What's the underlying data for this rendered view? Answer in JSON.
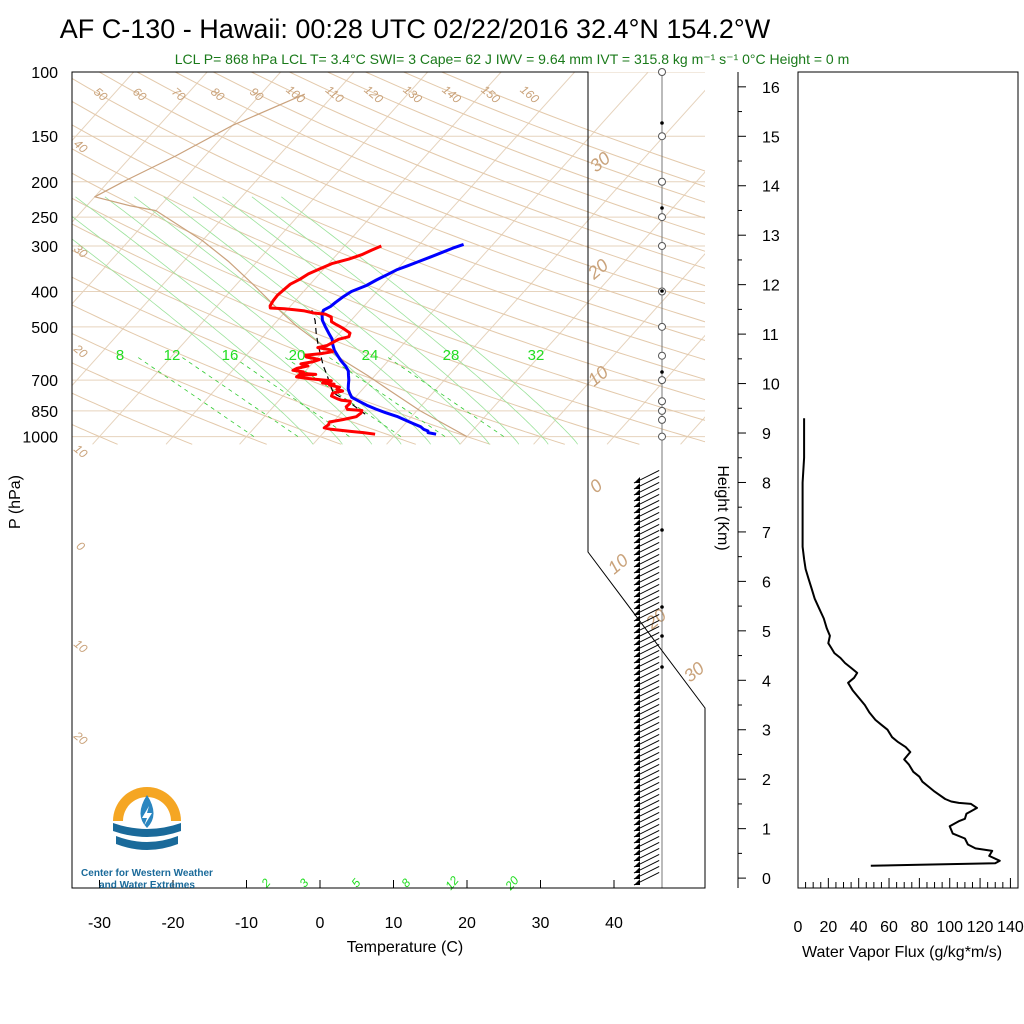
{
  "title": "AF C-130 - Hawaii: 00:28 UTC 02/22/2016  32.4°N 154.2°W",
  "subtitle": "LCL P= 868 hPa  LCL T= 3.4°C  SWI= 3  Cape= 62 J  IWV = 9.64 mm  IVT = 315.8 kg m⁻¹ s⁻¹  0°C Height = 0 m",
  "logo": {
    "line1": "Center for Western Weather",
    "line2": "and Water Extremes"
  },
  "colors": {
    "temperature": "#ff0000",
    "dewpoint": "#0000ff",
    "isotherm": "#d9bf9f",
    "mixing_ratio": "#22dd22",
    "parcel": "#000000",
    "logo_orange": "#f5a623",
    "logo_blue": "#1a6a9a"
  },
  "chart_data": [
    {
      "type": "line",
      "name": "skew-t",
      "xlabel": "Temperature (C)",
      "ylabel": "P (hPa)",
      "x_ticks": [
        "-30",
        "-20",
        "-10",
        "0",
        "10",
        "20",
        "30",
        "40"
      ],
      "x_tick_values": [
        -30,
        -20,
        -10,
        0,
        10,
        20,
        30,
        40
      ],
      "y_ticks": [
        "100",
        "150",
        "200",
        "250",
        "300",
        "400",
        "500",
        "700",
        "850",
        "1000"
      ],
      "y_tick_values": [
        100,
        150,
        200,
        250,
        300,
        400,
        500,
        700,
        850,
        1000
      ],
      "xlim": [
        -34,
        51
      ],
      "ylim": [
        1050,
        100
      ],
      "y_scale": "log",
      "isotherm_labels_top": [
        "50",
        "60",
        "70",
        "80",
        "90",
        "100",
        "110",
        "120",
        "130",
        "140",
        "150",
        "160"
      ],
      "isotherm_labels_left": [
        "40",
        "30",
        "20",
        "10",
        "0",
        "10",
        "20"
      ],
      "isotherm_labels_right": [
        "30",
        "20",
        "10",
        "0",
        "10",
        "20",
        "30"
      ],
      "mixing_ratio_labels_top": [
        "8",
        "12",
        "16",
        "20",
        "24",
        "28",
        "32"
      ],
      "mixing_ratio_labels_bottom": [
        "2",
        "3",
        "5",
        "8",
        "12",
        "20"
      ],
      "series": [
        {
          "name": "Temperature",
          "points": [
            [
              7.2,
              985
            ],
            [
              5.4,
              975
            ],
            [
              3.7,
              968
            ],
            [
              2.5,
              963
            ],
            [
              0.6,
              955
            ],
            [
              -0.5,
              946
            ],
            [
              -0.3,
              928
            ],
            [
              -0.5,
              912
            ],
            [
              1.0,
              898
            ],
            [
              2.5,
              882
            ],
            [
              2.7,
              862
            ],
            [
              2.5,
              848
            ],
            [
              0.4,
              842
            ],
            [
              -0.1,
              828
            ],
            [
              0.0,
              812
            ],
            [
              -0.2,
              800
            ],
            [
              -1.5,
              795
            ],
            [
              -2.3,
              787
            ],
            [
              -3.4,
              774
            ],
            [
              -3.6,
              760
            ],
            [
              -2.5,
              750
            ],
            [
              -3.5,
              742
            ],
            [
              -3.4,
              732
            ],
            [
              -5.0,
              723
            ],
            [
              -4.5,
              718
            ],
            [
              -6.2,
              713
            ],
            [
              -5.3,
              703
            ],
            [
              -7.5,
              697
            ],
            [
              -9.0,
              692
            ],
            [
              -10.5,
              686
            ],
            [
              -10.4,
              680
            ],
            [
              -8.2,
              675
            ],
            [
              -10.5,
              670
            ],
            [
              -10.2,
              664
            ],
            [
              -11.8,
              658
            ],
            [
              -11.5,
              650
            ],
            [
              -10.3,
              640
            ],
            [
              -11.5,
              632
            ],
            [
              -10.2,
              624
            ],
            [
              -9.5,
              615
            ],
            [
              -11.6,
              605
            ],
            [
              -12.0,
              598
            ],
            [
              -10.0,
              592
            ],
            [
              -8.7,
              585
            ],
            [
              -9.2,
              578
            ],
            [
              -11.2,
              570
            ],
            [
              -10.2,
              562
            ],
            [
              -9.8,
              552
            ],
            [
              -9.4,
              541
            ],
            [
              -8.3,
              532
            ],
            [
              -8.6,
              520
            ],
            [
              -9.5,
              511
            ],
            [
              -10.3,
              503
            ],
            [
              -11.5,
              493
            ],
            [
              -12.5,
              484
            ],
            [
              -13.1,
              470
            ],
            [
              -14.2,
              462
            ],
            [
              -16.0,
              458
            ],
            [
              -17.5,
              452
            ],
            [
              -19.0,
              449
            ],
            [
              -20.5,
              446
            ],
            [
              -22.5,
              444
            ],
            [
              -22.8,
              438
            ],
            [
              -23.0,
              425
            ],
            [
              -23.1,
              410
            ],
            [
              -22.9,
              395
            ],
            [
              -22.7,
              382
            ],
            [
              -22.0,
              370
            ],
            [
              -21.5,
              358
            ],
            [
              -20.5,
              346
            ],
            [
              -19.5,
              335
            ],
            [
              -17.8,
              326
            ],
            [
              -16.6,
              317
            ],
            [
              -15.8,
              308
            ],
            [
              -15.0,
              300
            ]
          ]
        },
        {
          "name": "Dewpoint",
          "points": [
            [
              15.5,
              985
            ],
            [
              14.2,
              975
            ],
            [
              14.0,
              965
            ],
            [
              13.2,
              955
            ],
            [
              12.5,
              940
            ],
            [
              11.0,
              920
            ],
            [
              9.5,
              900
            ],
            [
              8.0,
              880
            ],
            [
              6.0,
              860
            ],
            [
              4.2,
              840
            ],
            [
              2.5,
              820
            ],
            [
              1.0,
              800
            ],
            [
              -0.5,
              780
            ],
            [
              -1.3,
              760
            ],
            [
              -2.0,
              740
            ],
            [
              -2.5,
              720
            ],
            [
              -3.0,
              700
            ],
            [
              -3.6,
              680
            ],
            [
              -4.2,
              660
            ],
            [
              -5.2,
              640
            ],
            [
              -6.4,
              620
            ],
            [
              -7.5,
              600
            ],
            [
              -8.6,
              580
            ],
            [
              -9.5,
              560
            ],
            [
              -10.3,
              540
            ],
            [
              -11.5,
              520
            ],
            [
              -12.7,
              500
            ],
            [
              -13.9,
              480
            ],
            [
              -14.7,
              462
            ],
            [
              -15.0,
              450
            ],
            [
              -14.5,
              440
            ],
            [
              -14.3,
              428
            ],
            [
              -14.0,
              415
            ],
            [
              -13.5,
              400
            ],
            [
              -12.2,
              385
            ],
            [
              -11.5,
              372
            ],
            [
              -10.7,
              360
            ],
            [
              -10.0,
              349
            ],
            [
              -9.0,
              340
            ],
            [
              -8.0,
              331
            ],
            [
              -7.0,
              322
            ],
            [
              -6.0,
              313
            ],
            [
              -5.0,
              304
            ],
            [
              -4.0,
              297
            ]
          ]
        },
        {
          "name": "Parcel",
          "points": [
            [
              3.4,
              868
            ],
            [
              -0.5,
              800
            ],
            [
              -3.5,
              760
            ],
            [
              -5.0,
              720
            ],
            [
              -6.5,
              680
            ],
            [
              -8.2,
              640
            ],
            [
              -9.8,
              600
            ],
            [
              -11.5,
              560
            ],
            [
              -13.2,
              520
            ],
            [
              -14.9,
              480
            ],
            [
              -16.6,
              450
            ]
          ]
        },
        {
          "name": "Reference",
          "points": [
            [
              20.0,
              1000
            ],
            [
              10.5,
              850
            ],
            [
              4.0,
              750
            ],
            [
              -1.0,
              680
            ],
            [
              -6.0,
              620
            ],
            [
              -11.0,
              560
            ],
            [
              -16.5,
              500
            ],
            [
              -22.0,
              440
            ],
            [
              -28.0,
              380
            ],
            [
              -34.0,
              330
            ],
            [
              -40.0,
              290
            ],
            [
              -50.0,
              240
            ],
            [
              -54.0,
              233
            ],
            [
              -60.0,
              220
            ],
            [
              -58.0,
              200
            ],
            [
              -54.0,
              170
            ],
            [
              -50.0,
              140
            ],
            [
              -44.0,
              115
            ]
          ]
        }
      ]
    },
    {
      "type": "line",
      "name": "water-vapor-flux",
      "xlabel": "Water Vapor Flux (g/kg*m/s)",
      "ylabel": "Height (Km)",
      "x_ticks": [
        "0",
        "20",
        "40",
        "60",
        "80",
        "100",
        "120",
        "140"
      ],
      "x_tick_values": [
        0,
        20,
        40,
        60,
        80,
        100,
        120,
        140
      ],
      "y_ticks": [
        "0",
        "1",
        "2",
        "3",
        "4",
        "5",
        "6",
        "7",
        "8",
        "9",
        "10",
        "11",
        "12",
        "13",
        "14",
        "15",
        "16"
      ],
      "y_tick_values": [
        0,
        1,
        2,
        3,
        4,
        5,
        6,
        7,
        8,
        9,
        10,
        11,
        12,
        13,
        14,
        15,
        16
      ],
      "xlim": [
        0,
        145
      ],
      "ylim": [
        -0.2,
        16.3
      ],
      "series": [
        {
          "name": "Water Vapor Flux",
          "points": [
            [
              48,
              0.25
            ],
            [
              80,
              0.27
            ],
            [
              130,
              0.3
            ],
            [
              133,
              0.35
            ],
            [
              126,
              0.45
            ],
            [
              128,
              0.55
            ],
            [
              117,
              0.6
            ],
            [
              112,
              0.68
            ],
            [
              110,
              0.8
            ],
            [
              102,
              0.9
            ],
            [
              100,
              1.05
            ],
            [
              106,
              1.15
            ],
            [
              110,
              1.2
            ],
            [
              111,
              1.3
            ],
            [
              114,
              1.35
            ],
            [
              118,
              1.42
            ],
            [
              114,
              1.5
            ],
            [
              106,
              1.52
            ],
            [
              101,
              1.55
            ],
            [
              97,
              1.6
            ],
            [
              90,
              1.75
            ],
            [
              86,
              1.85
            ],
            [
              82,
              1.95
            ],
            [
              80,
              2.05
            ],
            [
              76,
              2.15
            ],
            [
              73,
              2.3
            ],
            [
              70,
              2.4
            ],
            [
              74,
              2.55
            ],
            [
              71,
              2.65
            ],
            [
              66,
              2.75
            ],
            [
              62,
              2.85
            ],
            [
              59,
              3.0
            ],
            [
              55,
              3.1
            ],
            [
              51,
              3.2
            ],
            [
              47,
              3.35
            ],
            [
              44,
              3.5
            ],
            [
              40,
              3.65
            ],
            [
              36,
              3.8
            ],
            [
              33,
              3.95
            ],
            [
              37,
              4.05
            ],
            [
              39,
              4.15
            ],
            [
              35,
              4.25
            ],
            [
              31,
              4.35
            ],
            [
              28,
              4.45
            ],
            [
              24,
              4.55
            ],
            [
              22,
              4.65
            ],
            [
              20,
              4.75
            ],
            [
              21,
              4.9
            ],
            [
              19,
              5.05
            ],
            [
              17,
              5.25
            ],
            [
              14,
              5.45
            ],
            [
              11,
              5.65
            ],
            [
              9,
              5.85
            ],
            [
              7,
              6.05
            ],
            [
              5,
              6.25
            ],
            [
              4,
              6.45
            ],
            [
              3,
              6.7
            ],
            [
              3,
              7.0
            ],
            [
              3,
              7.5
            ],
            [
              3,
              8.0
            ],
            [
              4,
              8.5
            ],
            [
              4,
              9.0
            ],
            [
              4,
              9.3
            ]
          ]
        }
      ]
    }
  ]
}
